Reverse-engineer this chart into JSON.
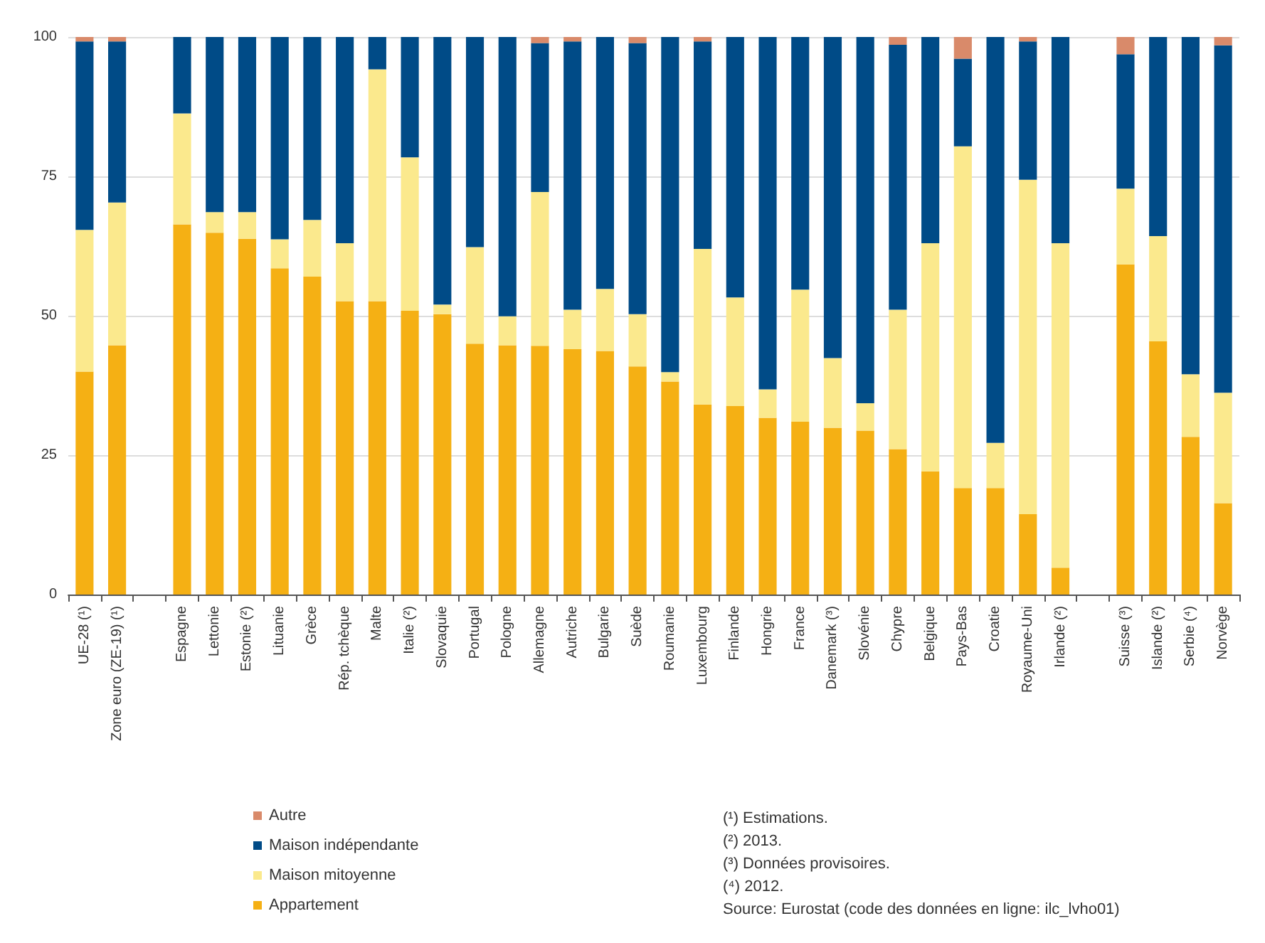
{
  "chart_data": {
    "type": "bar",
    "stacked": true,
    "categories": [
      "UE-28 (¹)",
      "Zone euro (ZE-19) (¹)",
      null,
      "Espagne",
      "Lettonie",
      "Estonie (²)",
      "Lituanie",
      "Grèce",
      "Rép. tchèque",
      "Malte",
      "Italie (²)",
      "Slovaquie",
      "Portugal",
      "Pologne",
      "Allemagne",
      "Autriche",
      "Bulgarie",
      "Suède",
      "Roumanie",
      "Luxembourg",
      "Finlande",
      "Hongrie",
      "France",
      "Danemark (³)",
      "Slovénie",
      "Chypre",
      "Belgique",
      "Pays-Bas",
      "Croatie",
      "Royaume-Uni",
      "Irlande (²)",
      null,
      "Suisse (³)",
      "Islande (²)",
      "Serbie (⁴)",
      "Norvège"
    ],
    "series": [
      {
        "name": "Appartement",
        "color": "#f5b014",
        "values": [
          40,
          44.7,
          null,
          66.4,
          64.9,
          63.8,
          58.5,
          57,
          52.6,
          52.6,
          50.9,
          50.3,
          45,
          44.7,
          44.6,
          44,
          43.7,
          40.9,
          38.2,
          34.1,
          33.8,
          31.7,
          31,
          29.9,
          29.4,
          26.1,
          22.1,
          19.1,
          19.1,
          14.4,
          4.8,
          null,
          59.2,
          45.4,
          28.3,
          16.4
        ]
      },
      {
        "name": "Maison mitoyenne",
        "color": "#fbe98d",
        "values": [
          25.4,
          25.6,
          null,
          19.9,
          3.7,
          4.8,
          5.2,
          10.2,
          10.4,
          41.6,
          27.5,
          1.7,
          17.3,
          5.2,
          27.6,
          7.1,
          11.1,
          9.4,
          1.7,
          27.9,
          19.5,
          5.1,
          23.7,
          12.5,
          4.9,
          25,
          40.9,
          61.3,
          8.1,
          60,
          58.2,
          null,
          13.6,
          18.9,
          11.2,
          19.8
        ]
      },
      {
        "name": "Maison indépendante",
        "color": "#004b87",
        "values": [
          33.8,
          28.9,
          null,
          13.7,
          31.4,
          31.4,
          36.3,
          32.8,
          37,
          5.8,
          21.6,
          48,
          37.7,
          50.1,
          26.7,
          48.1,
          45.2,
          48.6,
          60.1,
          37.2,
          46.7,
          63.2,
          45.3,
          57.6,
          65.7,
          47.5,
          37,
          15.7,
          72.8,
          24.8,
          37,
          null,
          24.1,
          35.7,
          60.5,
          62.3
        ]
      },
      {
        "name": "Autre",
        "color": "#d98a6a",
        "values": [
          0.8,
          0.8,
          null,
          0,
          0,
          0,
          0,
          0,
          0,
          0,
          0,
          0,
          0,
          0,
          1.1,
          0.8,
          0,
          1.1,
          0,
          0.8,
          0,
          0,
          0,
          0,
          0,
          1.4,
          0,
          3.9,
          0,
          0.8,
          0,
          null,
          3.1,
          0,
          0,
          1.5
        ]
      }
    ],
    "ylim": [
      0,
      100
    ],
    "yticks": [
      0,
      25,
      50,
      75,
      100
    ],
    "grid": "y",
    "legend": "bottom left",
    "annotations": [
      "(¹) Estimations.",
      "(²) 2013.",
      "(³) Données provisoires.",
      "(⁴) 2012.",
      "Source: Eurostat (code des données en ligne: ilc_lvho01)"
    ]
  }
}
